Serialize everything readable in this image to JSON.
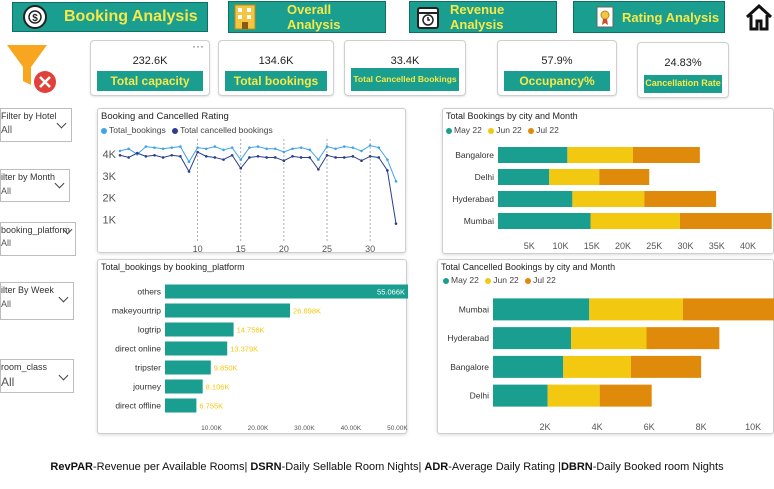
{
  "nav": {
    "title": "Booking Analysis",
    "overall": "Overall Analysis",
    "revenue": "Revenue Analysis",
    "rating": "Rating Analysis"
  },
  "kpis": [
    {
      "value": "232.6K",
      "label": "Total capacity"
    },
    {
      "value": "134.6K",
      "label": "Total bookings"
    },
    {
      "value": "33.4K",
      "label": "Total Cancelled Bookings"
    },
    {
      "value": "57.9%",
      "label": "Occupancy%"
    },
    {
      "value": "24.83%",
      "label": "Cancellation Rate"
    }
  ],
  "more_options": "···",
  "filters": [
    {
      "title": "Filter by Hotel",
      "value": "All"
    },
    {
      "title": "ilter by Month",
      "value": "All"
    },
    {
      "title": "booking_platform",
      "value": "All"
    },
    {
      "title": "ilter By Week",
      "value": "All"
    },
    {
      "title": "room_class",
      "value": "All"
    }
  ],
  "colors": {
    "teal": "#1a9e8f",
    "yellow": "#f2c811",
    "orange": "#e08a0b",
    "light_blue": "#41a4e8",
    "navy": "#2c3e8c",
    "kpi_text": "#f7e84a"
  },
  "footer": {
    "parts": [
      {
        "b": "RevPAR",
        "t": "-Revenue per Available Rooms| "
      },
      {
        "b": "DSRN",
        "t": "-Daily Sellable Room Nights| "
      },
      {
        "b": "ADR",
        "t": "-Average Daily Rating |"
      },
      {
        "b": "DBRN",
        "t": "-Daily Booked room Nights"
      }
    ]
  },
  "chart_data": [
    {
      "id": "line",
      "type": "line",
      "title": "Booking and Cancelled Rating",
      "series": [
        {
          "name": "Total_bookings",
          "values": [
            4150,
            4250,
            4000,
            4350,
            4300,
            4250,
            4300,
            4350,
            3650,
            4300,
            4250,
            4350,
            4200,
            4300,
            3750,
            4300,
            4350,
            4250,
            4250,
            4100,
            4250,
            4300,
            4200,
            3750,
            4350,
            4250,
            4350,
            4300,
            4150,
            4400,
            4300,
            3750,
            2750
          ]
        },
        {
          "name": "Total cancelled bookings",
          "values": [
            3950,
            3850,
            4050,
            3900,
            3950,
            3850,
            3950,
            3900,
            3200,
            4100,
            3900,
            3850,
            3750,
            3950,
            3350,
            3850,
            3900,
            3850,
            3850,
            3700,
            3900,
            3850,
            3850,
            3300,
            3950,
            3850,
            3850,
            3900,
            3700,
            3900,
            3850,
            3250,
            800
          ]
        }
      ],
      "x_start": 1,
      "x_ticks": [
        10,
        15,
        20,
        25,
        30
      ],
      "y_ticks": [
        {
          "v": 1000,
          "l": "1K"
        },
        {
          "v": 2000,
          "l": "2K"
        },
        {
          "v": 3000,
          "l": "3K"
        },
        {
          "v": 4000,
          "l": "4K"
        }
      ],
      "ylim": [
        0,
        4700
      ]
    },
    {
      "id": "city",
      "type": "bar",
      "title": "Total Bookings by city and Month",
      "categories": [
        "Bangalore",
        "Delhi",
        "Hyderabad",
        "Mumbai"
      ],
      "series": [
        {
          "name": "May 22",
          "values": [
            11100,
            8200,
            11900,
            14800
          ]
        },
        {
          "name": "Jun 22",
          "values": [
            10500,
            8000,
            11500,
            14300
          ]
        },
        {
          "name": "Jul 22",
          "values": [
            10700,
            8000,
            11500,
            14700
          ]
        }
      ],
      "x_ticks": [
        {
          "v": 5000,
          "l": "5K"
        },
        {
          "v": 10000,
          "l": "10K"
        },
        {
          "v": 15000,
          "l": "15K"
        },
        {
          "v": 20000,
          "l": "20K"
        },
        {
          "v": 25000,
          "l": "25K"
        },
        {
          "v": 30000,
          "l": "30K"
        },
        {
          "v": 35000,
          "l": "35K"
        },
        {
          "v": 40000,
          "l": "40K"
        }
      ],
      "xlim": [
        0,
        44000
      ]
    },
    {
      "id": "platform",
      "type": "bar",
      "title": "Total_bookings by booking_platform",
      "categories": [
        "others",
        "makeyourtrip",
        "logtrip",
        "direct online",
        "tripster",
        "journey",
        "direct offline"
      ],
      "values": [
        55066,
        26898,
        14756,
        13379,
        9850,
        8106,
        6755
      ],
      "labels": [
        "55.066K",
        "26.898K",
        "14.756K",
        "13.379K",
        "9.850K",
        "8.106K",
        "6.755K"
      ],
      "x_ticks": [
        {
          "v": 10000,
          "l": "10.00K"
        },
        {
          "v": 20000,
          "l": "20.00K"
        },
        {
          "v": 30000,
          "l": "30.00K"
        },
        {
          "v": 40000,
          "l": "40.00K"
        },
        {
          "v": 50000,
          "l": "50.00K"
        }
      ],
      "xlim": [
        0,
        55066
      ]
    },
    {
      "id": "cancel",
      "type": "bar",
      "title": "Total Cancelled Bookings by city and Month",
      "categories": [
        "Mumbai",
        "Hyderabad",
        "Bangalore",
        "Delhi"
      ],
      "series": [
        {
          "name": "May 22",
          "values": [
            3700,
            3000,
            2700,
            2100
          ]
        },
        {
          "name": "Jun 22",
          "values": [
            3600,
            2900,
            2600,
            2000
          ]
        },
        {
          "name": "Jul 22",
          "values": [
            3700,
            2800,
            2700,
            2000
          ]
        }
      ],
      "x_ticks": [
        {
          "v": 2000,
          "l": "2K"
        },
        {
          "v": 4000,
          "l": "4K"
        },
        {
          "v": 6000,
          "l": "6K"
        },
        {
          "v": 8000,
          "l": "8K"
        },
        {
          "v": 10000,
          "l": "10K"
        }
      ],
      "xlim": [
        0,
        10800
      ]
    }
  ]
}
